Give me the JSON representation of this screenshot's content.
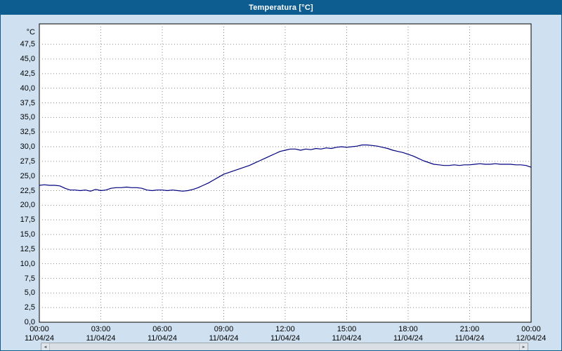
{
  "window": {
    "title": "Temperatura [°C]"
  },
  "colors": {
    "titlebar_bg": "#0e5d91",
    "background": "#cfe0f0",
    "plot_bg": "#ffffff",
    "plot_border": "#000000",
    "grid": "#8a8a8a",
    "line": "#000080",
    "label_text": "#000000"
  },
  "icons": {
    "scroll_left": "◄",
    "scroll_right": "►"
  },
  "chart_data": {
    "type": "line",
    "title": "Temperatura [°C]",
    "xlabel": "",
    "ylabel": "°C",
    "ylim": [
      0,
      50
    ],
    "ytick_step": 2.5,
    "ytick_labels_top_to_bottom": [
      "47,5",
      "45,0",
      "42,5",
      "40,0",
      "37,5",
      "35,0",
      "32,5",
      "30,0",
      "27,5",
      "25,0",
      "22,5",
      "20,0",
      "17,5",
      "15,0",
      "12,5",
      "10,0",
      "7,5",
      "5,0",
      "2,5",
      "0,0"
    ],
    "ytick_values_top_to_bottom": [
      47.5,
      45.0,
      42.5,
      40.0,
      37.5,
      35.0,
      32.5,
      30.0,
      27.5,
      25.0,
      22.5,
      20.0,
      17.5,
      15.0,
      12.5,
      10.0,
      7.5,
      5.0,
      2.5,
      0.0
    ],
    "grid": true,
    "legend_position": "none",
    "x_hours_range": [
      0,
      24
    ],
    "xticks": [
      {
        "hour": 0,
        "time": "00:00",
        "date": "11/04/24"
      },
      {
        "hour": 3,
        "time": "03:00",
        "date": "11/04/24"
      },
      {
        "hour": 6,
        "time": "06:00",
        "date": "11/04/24"
      },
      {
        "hour": 9,
        "time": "09:00",
        "date": "11/04/24"
      },
      {
        "hour": 12,
        "time": "12:00",
        "date": "11/04/24"
      },
      {
        "hour": 15,
        "time": "15:00",
        "date": "11/04/24"
      },
      {
        "hour": 18,
        "time": "18:00",
        "date": "11/04/24"
      },
      {
        "hour": 21,
        "time": "21:00",
        "date": "11/04/24"
      },
      {
        "hour": 24,
        "time": "00:00",
        "date": "12/04/24"
      }
    ],
    "series": [
      {
        "name": "Temperatura",
        "color": "#000080",
        "points": [
          [
            0.0,
            23.4
          ],
          [
            0.25,
            23.5
          ],
          [
            0.5,
            23.4
          ],
          [
            0.75,
            23.4
          ],
          [
            1.0,
            23.3
          ],
          [
            1.25,
            22.9
          ],
          [
            1.5,
            22.6
          ],
          [
            1.75,
            22.6
          ],
          [
            2.0,
            22.5
          ],
          [
            2.25,
            22.6
          ],
          [
            2.5,
            22.4
          ],
          [
            2.75,
            22.7
          ],
          [
            3.0,
            22.5
          ],
          [
            3.25,
            22.6
          ],
          [
            3.5,
            22.9
          ],
          [
            3.75,
            23.0
          ],
          [
            4.0,
            23.0
          ],
          [
            4.25,
            23.1
          ],
          [
            4.5,
            23.0
          ],
          [
            4.75,
            23.0
          ],
          [
            5.0,
            22.9
          ],
          [
            5.25,
            22.6
          ],
          [
            5.5,
            22.5
          ],
          [
            5.75,
            22.6
          ],
          [
            6.0,
            22.6
          ],
          [
            6.25,
            22.5
          ],
          [
            6.5,
            22.6
          ],
          [
            6.75,
            22.5
          ],
          [
            7.0,
            22.4
          ],
          [
            7.25,
            22.5
          ],
          [
            7.5,
            22.7
          ],
          [
            7.75,
            23.0
          ],
          [
            8.0,
            23.4
          ],
          [
            8.25,
            23.8
          ],
          [
            8.5,
            24.3
          ],
          [
            8.75,
            24.8
          ],
          [
            9.0,
            25.3
          ],
          [
            9.25,
            25.6
          ],
          [
            9.5,
            25.9
          ],
          [
            9.75,
            26.2
          ],
          [
            10.0,
            26.5
          ],
          [
            10.25,
            26.8
          ],
          [
            10.5,
            27.2
          ],
          [
            10.75,
            27.6
          ],
          [
            11.0,
            28.0
          ],
          [
            11.25,
            28.4
          ],
          [
            11.5,
            28.8
          ],
          [
            11.75,
            29.2
          ],
          [
            12.0,
            29.4
          ],
          [
            12.25,
            29.6
          ],
          [
            12.5,
            29.6
          ],
          [
            12.75,
            29.4
          ],
          [
            13.0,
            29.6
          ],
          [
            13.25,
            29.5
          ],
          [
            13.5,
            29.7
          ],
          [
            13.75,
            29.6
          ],
          [
            14.0,
            29.8
          ],
          [
            14.25,
            29.7
          ],
          [
            14.5,
            29.9
          ],
          [
            14.75,
            30.0
          ],
          [
            15.0,
            29.9
          ],
          [
            15.25,
            30.0
          ],
          [
            15.5,
            30.1
          ],
          [
            15.75,
            30.3
          ],
          [
            16.0,
            30.3
          ],
          [
            16.25,
            30.2
          ],
          [
            16.5,
            30.1
          ],
          [
            16.75,
            29.9
          ],
          [
            17.0,
            29.7
          ],
          [
            17.25,
            29.4
          ],
          [
            17.5,
            29.2
          ],
          [
            17.75,
            29.0
          ],
          [
            18.0,
            28.7
          ],
          [
            18.25,
            28.4
          ],
          [
            18.5,
            28.0
          ],
          [
            18.75,
            27.6
          ],
          [
            19.0,
            27.3
          ],
          [
            19.25,
            27.0
          ],
          [
            19.5,
            26.9
          ],
          [
            19.75,
            26.8
          ],
          [
            20.0,
            26.8
          ],
          [
            20.25,
            26.9
          ],
          [
            20.5,
            26.8
          ],
          [
            20.75,
            26.9
          ],
          [
            21.0,
            26.9
          ],
          [
            21.25,
            27.0
          ],
          [
            21.5,
            27.1
          ],
          [
            21.75,
            27.0
          ],
          [
            22.0,
            27.0
          ],
          [
            22.25,
            27.1
          ],
          [
            22.5,
            27.0
          ],
          [
            22.75,
            27.0
          ],
          [
            23.0,
            27.0
          ],
          [
            23.25,
            26.9
          ],
          [
            23.5,
            26.9
          ],
          [
            23.75,
            26.8
          ],
          [
            24.0,
            26.5
          ]
        ]
      }
    ]
  }
}
